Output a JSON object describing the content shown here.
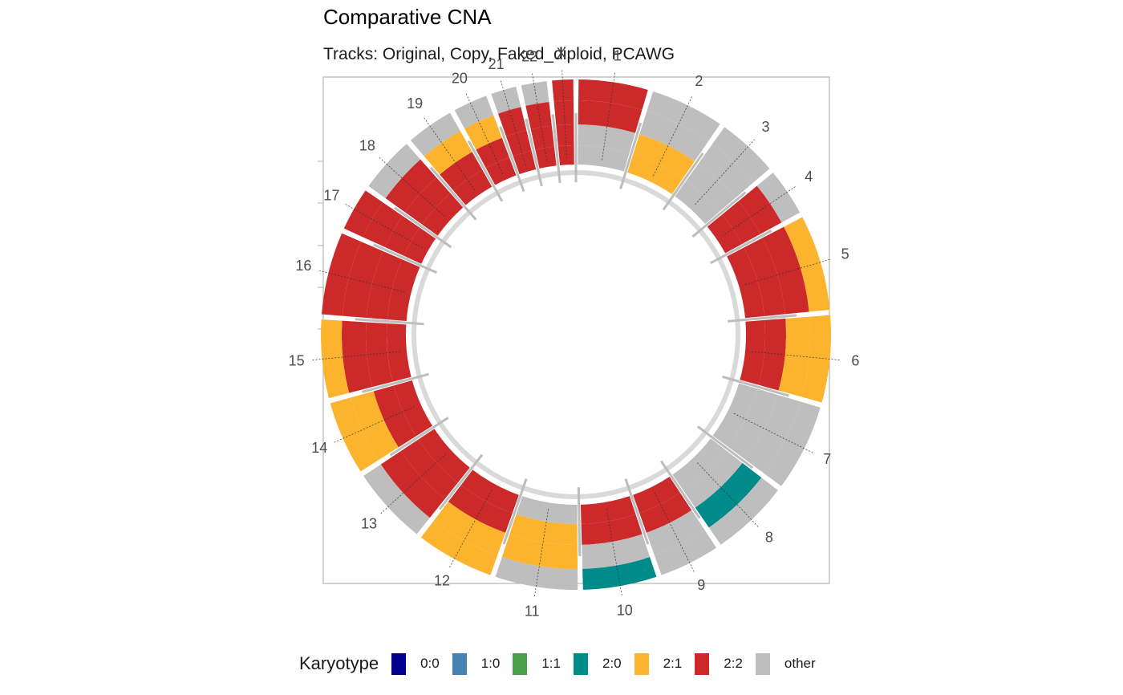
{
  "chart_data": {
    "type": "circular-genome",
    "title": "Comparative CNA",
    "subtitle": "Tracks: Original, Copy, Faked_diploid, PCAWG",
    "tracks": [
      "Original",
      "Copy",
      "Faked_diploid",
      "PCAWG"
    ],
    "chromosomes": [
      "1",
      "2",
      "3",
      "4",
      "5",
      "6",
      "7",
      "8",
      "9",
      "10",
      "11",
      "12",
      "13",
      "14",
      "15",
      "16",
      "17",
      "18",
      "19",
      "20",
      "21",
      "22",
      "X"
    ],
    "legend": {
      "title": "Karyotype",
      "position": "bottom",
      "entries": [
        {
          "label": "0:0",
          "color": "#00008b"
        },
        {
          "label": "1:0",
          "color": "#4682b4"
        },
        {
          "label": "1:1",
          "color": "#4a9e4a"
        },
        {
          "label": "2:0",
          "color": "#008b8b"
        },
        {
          "label": "2:1",
          "color": "#fcb42e"
        },
        {
          "label": "2:2",
          "color": "#cc2a2a"
        },
        {
          "label": "other",
          "color": "#bebebe"
        }
      ]
    },
    "segments": [
      {
        "chr": "1",
        "track": "Original",
        "karyotype": "other"
      },
      {
        "chr": "1",
        "track": "Copy",
        "karyotype": "other"
      },
      {
        "chr": "1",
        "track": "Faked_diploid",
        "karyotype": "2:2"
      },
      {
        "chr": "1",
        "track": "PCAWG",
        "karyotype": "2:2"
      },
      {
        "chr": "2",
        "track": "Original",
        "karyotype": "2:1"
      },
      {
        "chr": "2",
        "track": "Copy",
        "karyotype": "2:1"
      },
      {
        "chr": "2",
        "track": "Faked_diploid",
        "karyotype": "other"
      },
      {
        "chr": "2",
        "track": "PCAWG",
        "karyotype": "other"
      },
      {
        "chr": "3",
        "track": "Original",
        "karyotype": "other"
      },
      {
        "chr": "3",
        "track": "Copy",
        "karyotype": "other"
      },
      {
        "chr": "3",
        "track": "Faked_diploid",
        "karyotype": "other"
      },
      {
        "chr": "3",
        "track": "PCAWG",
        "karyotype": "other"
      },
      {
        "chr": "4",
        "track": "Original",
        "karyotype": "2:2"
      },
      {
        "chr": "4",
        "track": "Copy",
        "karyotype": "2:2"
      },
      {
        "chr": "4",
        "track": "Faked_diploid",
        "karyotype": "2:2"
      },
      {
        "chr": "4",
        "track": "PCAWG",
        "karyotype": "other"
      },
      {
        "chr": "5",
        "track": "Original",
        "karyotype": "2:2"
      },
      {
        "chr": "5",
        "track": "Copy",
        "karyotype": "2:2"
      },
      {
        "chr": "5",
        "track": "Faked_diploid",
        "karyotype": "2:2"
      },
      {
        "chr": "5",
        "track": "PCAWG",
        "karyotype": "2:1"
      },
      {
        "chr": "6",
        "track": "Original",
        "karyotype": "2:2"
      },
      {
        "chr": "6",
        "track": "Copy",
        "karyotype": "2:2"
      },
      {
        "chr": "6",
        "track": "Faked_diploid",
        "karyotype": "2:1"
      },
      {
        "chr": "6",
        "track": "PCAWG",
        "karyotype": "2:1"
      },
      {
        "chr": "7",
        "track": "Original",
        "karyotype": "other"
      },
      {
        "chr": "7",
        "track": "Copy",
        "karyotype": "other"
      },
      {
        "chr": "7",
        "track": "Faked_diploid",
        "karyotype": "other"
      },
      {
        "chr": "7",
        "track": "PCAWG",
        "karyotype": "other"
      },
      {
        "chr": "8",
        "track": "Original",
        "karyotype": "other"
      },
      {
        "chr": "8",
        "track": "Copy",
        "karyotype": "other"
      },
      {
        "chr": "8",
        "track": "Faked_diploid",
        "karyotype": "2:0"
      },
      {
        "chr": "8",
        "track": "PCAWG",
        "karyotype": "other"
      },
      {
        "chr": "9",
        "track": "Original",
        "karyotype": "2:2"
      },
      {
        "chr": "9",
        "track": "Copy",
        "karyotype": "2:2"
      },
      {
        "chr": "9",
        "track": "Faked_diploid",
        "karyotype": "other"
      },
      {
        "chr": "9",
        "track": "PCAWG",
        "karyotype": "other"
      },
      {
        "chr": "10",
        "track": "Original",
        "karyotype": "2:2"
      },
      {
        "chr": "10",
        "track": "Copy",
        "karyotype": "2:2"
      },
      {
        "chr": "10",
        "track": "Faked_diploid",
        "karyotype": "other"
      },
      {
        "chr": "10",
        "track": "PCAWG",
        "karyotype": "2:0"
      },
      {
        "chr": "11",
        "track": "Original",
        "karyotype": "other"
      },
      {
        "chr": "11",
        "track": "Copy",
        "karyotype": "2:1"
      },
      {
        "chr": "11",
        "track": "Faked_diploid",
        "karyotype": "2:1"
      },
      {
        "chr": "11",
        "track": "PCAWG",
        "karyotype": "other"
      },
      {
        "chr": "12",
        "track": "Original",
        "karyotype": "2:2"
      },
      {
        "chr": "12",
        "track": "Copy",
        "karyotype": "2:2"
      },
      {
        "chr": "12",
        "track": "Faked_diploid",
        "karyotype": "2:1"
      },
      {
        "chr": "12",
        "track": "PCAWG",
        "karyotype": "2:1"
      },
      {
        "chr": "13",
        "track": "Original",
        "karyotype": "2:2"
      },
      {
        "chr": "13",
        "track": "Copy",
        "karyotype": "2:2"
      },
      {
        "chr": "13",
        "track": "Faked_diploid",
        "karyotype": "2:2"
      },
      {
        "chr": "13",
        "track": "PCAWG",
        "karyotype": "other"
      },
      {
        "chr": "14",
        "track": "Original",
        "karyotype": "2:2"
      },
      {
        "chr": "14",
        "track": "Copy",
        "karyotype": "2:2"
      },
      {
        "chr": "14",
        "track": "Faked_diploid",
        "karyotype": "2:1"
      },
      {
        "chr": "14",
        "track": "PCAWG",
        "karyotype": "2:1"
      },
      {
        "chr": "15",
        "track": "Original",
        "karyotype": "2:2"
      },
      {
        "chr": "15",
        "track": "Copy",
        "karyotype": "2:2"
      },
      {
        "chr": "15",
        "track": "Faked_diploid",
        "karyotype": "2:2"
      },
      {
        "chr": "15",
        "track": "PCAWG",
        "karyotype": "2:1"
      },
      {
        "chr": "16",
        "track": "Original",
        "karyotype": "2:2"
      },
      {
        "chr": "16",
        "track": "Copy",
        "karyotype": "2:2"
      },
      {
        "chr": "16",
        "track": "Faked_diploid",
        "karyotype": "2:2"
      },
      {
        "chr": "16",
        "track": "PCAWG",
        "karyotype": "2:2"
      },
      {
        "chr": "17",
        "track": "Original",
        "karyotype": "2:2"
      },
      {
        "chr": "17",
        "track": "Copy",
        "karyotype": "2:2"
      },
      {
        "chr": "17",
        "track": "Faked_diploid",
        "karyotype": "2:2"
      },
      {
        "chr": "17",
        "track": "PCAWG",
        "karyotype": "2:2"
      },
      {
        "chr": "18",
        "track": "Original",
        "karyotype": "2:2"
      },
      {
        "chr": "18",
        "track": "Copy",
        "karyotype": "2:2"
      },
      {
        "chr": "18",
        "track": "Faked_diploid",
        "karyotype": "2:2"
      },
      {
        "chr": "18",
        "track": "PCAWG",
        "karyotype": "other"
      },
      {
        "chr": "19",
        "track": "Original",
        "karyotype": "2:2"
      },
      {
        "chr": "19",
        "track": "Copy",
        "karyotype": "2:2"
      },
      {
        "chr": "19",
        "track": "Faked_diploid",
        "karyotype": "2:1"
      },
      {
        "chr": "19",
        "track": "PCAWG",
        "karyotype": "other"
      },
      {
        "chr": "20",
        "track": "Original",
        "karyotype": "2:2"
      },
      {
        "chr": "20",
        "track": "Copy",
        "karyotype": "2:2"
      },
      {
        "chr": "20",
        "track": "Faked_diploid",
        "karyotype": "2:1"
      },
      {
        "chr": "20",
        "track": "PCAWG",
        "karyotype": "other"
      },
      {
        "chr": "21",
        "track": "Original",
        "karyotype": "2:2"
      },
      {
        "chr": "21",
        "track": "Copy",
        "karyotype": "2:2"
      },
      {
        "chr": "21",
        "track": "Faked_diploid",
        "karyotype": "2:2"
      },
      {
        "chr": "21",
        "track": "PCAWG",
        "karyotype": "other"
      },
      {
        "chr": "22",
        "track": "Original",
        "karyotype": "2:2"
      },
      {
        "chr": "22",
        "track": "Copy",
        "karyotype": "2:2"
      },
      {
        "chr": "22",
        "track": "Faked_diploid",
        "karyotype": "2:2"
      },
      {
        "chr": "22",
        "track": "PCAWG",
        "karyotype": "other"
      },
      {
        "chr": "X",
        "track": "Original",
        "karyotype": "2:2"
      },
      {
        "chr": "X",
        "track": "Copy",
        "karyotype": "2:2"
      },
      {
        "chr": "X",
        "track": "Faked_diploid",
        "karyotype": "2:2"
      },
      {
        "chr": "X",
        "track": "PCAWG",
        "karyotype": "2:2"
      }
    ]
  }
}
